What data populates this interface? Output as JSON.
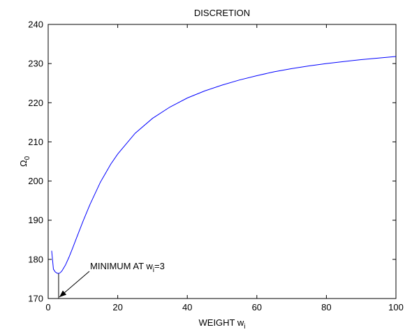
{
  "chart_data": {
    "type": "line",
    "title": "DISCRETION",
    "xlabel": {
      "main": "WEIGHT  w",
      "sub": "i"
    },
    "ylabel": {
      "main": "Ω",
      "sub": "0"
    },
    "xlim": [
      0,
      100
    ],
    "ylim": [
      170,
      240
    ],
    "xticks": [
      0,
      20,
      40,
      60,
      80,
      100
    ],
    "yticks": [
      170,
      180,
      190,
      200,
      210,
      220,
      230,
      240
    ],
    "grid": false,
    "line_color": "#0000ff",
    "series": [
      {
        "x": [
          1,
          1.5,
          2,
          2.5,
          3,
          3.5,
          4,
          5,
          6,
          7,
          8,
          10,
          12,
          15,
          18,
          20,
          25,
          30,
          35,
          40,
          45,
          50,
          55,
          60,
          65,
          70,
          75,
          80,
          85,
          90,
          95,
          100
        ],
        "y": [
          182.2,
          177.5,
          176.8,
          176.5,
          176.4,
          176.6,
          177.1,
          178.6,
          180.6,
          182.8,
          185.1,
          189.7,
          194.0,
          199.7,
          204.3,
          206.9,
          212.2,
          216.0,
          218.9,
          221.2,
          223.0,
          224.5,
          225.8,
          226.9,
          227.9,
          228.7,
          229.4,
          230.0,
          230.5,
          231.0,
          231.4,
          231.8
        ]
      }
    ],
    "annotation": {
      "text_main": "MINIMUM AT  w",
      "text_sub": "i",
      "text_suffix": "=3",
      "x": 3,
      "y": 176.4
    }
  }
}
